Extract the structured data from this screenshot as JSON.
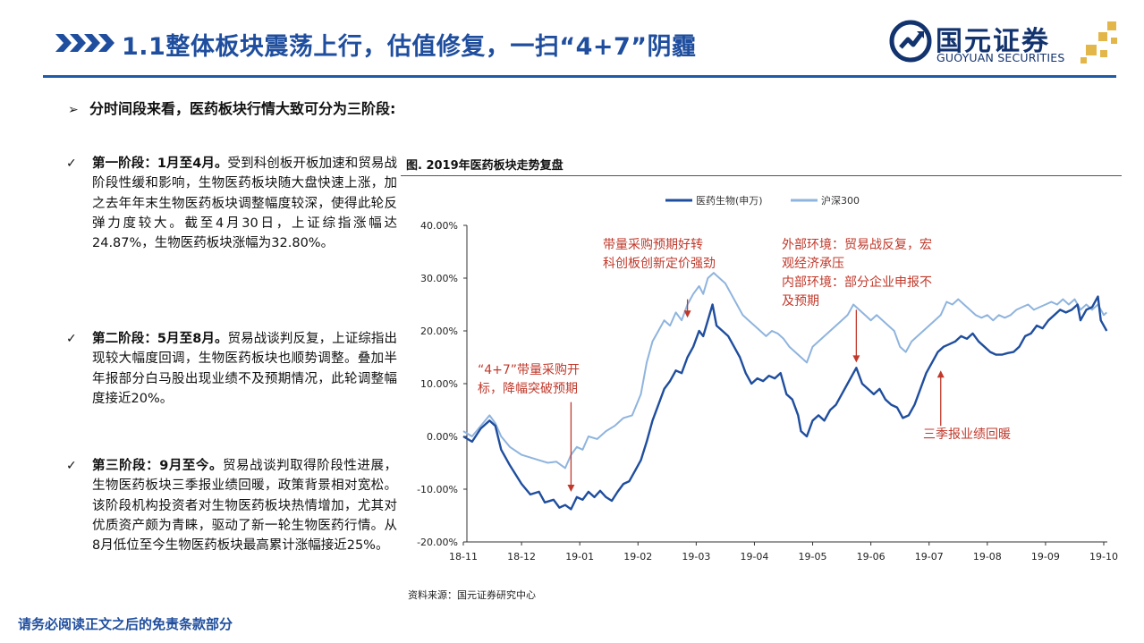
{
  "header": {
    "title": "1.1整体板块震荡上行，估值修复，一扫“4+7”阴霾"
  },
  "logo": {
    "name_cn": "国元证券",
    "name_en": "GUOYUAN SECURITIES"
  },
  "intro": "分时间段来看，医药板块行情大致可分为三阶段:",
  "stages": [
    {
      "lead": "第一阶段：1月至4月。",
      "text": "受到科创板开板加速和贸易战阶段性缓和影响，生物医药板块随大盘快速上涨，加之去年年末生物医药板块调整幅度较深，使得此轮反弹力度较大。截至4月30日，上证综指涨幅达24.87%，生物医药板块涨幅为32.80%。"
    },
    {
      "lead": "第二阶段：5月至8月。",
      "text": "贸易战谈判反复，上证综指出现较大幅度回调，生物医药板块也顺势调整。叠加半年报部分白马股出现业绩不及预期情况，此轮调整幅度接近20%。"
    },
    {
      "lead": "第三阶段：9月至今。",
      "text": "贸易战谈判取得阶段性进展，生物医药板块三季报业绩回暖，政策背景相对宽松。该阶段机构投资者对生物医药板块热情增加，尤其对优质资产颇为青睐，驱动了新一轮生物医药行情。从8月低位至今生物医药板块最高累计涨幅接近25%。"
    }
  ],
  "figure": {
    "title": "图. 2019年医药板块走势复盘",
    "source": "资料来源：国元证券研究中心"
  },
  "chart_data": {
    "type": "line",
    "title": "",
    "x_ticks": [
      "18-11",
      "18-12",
      "19-01",
      "19-02",
      "19-03",
      "19-04",
      "19-05",
      "19-06",
      "19-07",
      "19-08",
      "19-09",
      "19-10"
    ],
    "y_ticks": [
      "-20.00%",
      "-10.00%",
      "0.00%",
      "10.00%",
      "20.00%",
      "30.00%",
      "40.00%"
    ],
    "ylim": [
      -20,
      40
    ],
    "legend_position": "top-center",
    "grid": false,
    "series": [
      {
        "name": "医药生物(申万)",
        "color": "#1f4e9e",
        "points": [
          [
            0,
            0
          ],
          [
            0.15,
            -1
          ],
          [
            0.3,
            1.5
          ],
          [
            0.45,
            3
          ],
          [
            0.55,
            2
          ],
          [
            0.65,
            -2.5
          ],
          [
            0.8,
            -5.5
          ],
          [
            1.0,
            -9
          ],
          [
            1.15,
            -11
          ],
          [
            1.3,
            -10.5
          ],
          [
            1.4,
            -12.5
          ],
          [
            1.55,
            -12
          ],
          [
            1.65,
            -13.5
          ],
          [
            1.75,
            -13
          ],
          [
            1.85,
            -13.8
          ],
          [
            1.95,
            -11.5
          ],
          [
            2.05,
            -12
          ],
          [
            2.15,
            -10.5
          ],
          [
            2.25,
            -11.5
          ],
          [
            2.35,
            -10.3
          ],
          [
            2.45,
            -11.5
          ],
          [
            2.55,
            -12.2
          ],
          [
            2.65,
            -10.5
          ],
          [
            2.75,
            -9
          ],
          [
            2.85,
            -8.5
          ],
          [
            2.95,
            -6.5
          ],
          [
            3.05,
            -4.5
          ],
          [
            3.15,
            -1
          ],
          [
            3.25,
            3
          ],
          [
            3.35,
            6
          ],
          [
            3.45,
            9
          ],
          [
            3.55,
            10.5
          ],
          [
            3.65,
            12.5
          ],
          [
            3.75,
            12
          ],
          [
            3.85,
            15
          ],
          [
            3.95,
            17
          ],
          [
            4.05,
            20
          ],
          [
            4.12,
            19
          ],
          [
            4.2,
            22
          ],
          [
            4.28,
            25
          ],
          [
            4.35,
            21
          ],
          [
            4.45,
            20
          ],
          [
            4.55,
            19
          ],
          [
            4.65,
            17
          ],
          [
            4.75,
            15
          ],
          [
            4.85,
            12
          ],
          [
            4.95,
            10
          ],
          [
            5.05,
            11
          ],
          [
            5.15,
            10.5
          ],
          [
            5.25,
            11.5
          ],
          [
            5.35,
            11
          ],
          [
            5.45,
            12
          ],
          [
            5.55,
            8
          ],
          [
            5.65,
            7
          ],
          [
            5.75,
            4
          ],
          [
            5.8,
            1
          ],
          [
            5.9,
            0
          ],
          [
            6.0,
            3
          ],
          [
            6.1,
            4
          ],
          [
            6.2,
            3
          ],
          [
            6.3,
            5
          ],
          [
            6.4,
            6
          ],
          [
            6.5,
            8
          ],
          [
            6.6,
            10
          ],
          [
            6.7,
            12
          ],
          [
            6.75,
            13
          ],
          [
            6.85,
            10
          ],
          [
            6.95,
            9
          ],
          [
            7.05,
            8
          ],
          [
            7.15,
            9
          ],
          [
            7.25,
            7
          ],
          [
            7.35,
            6
          ],
          [
            7.45,
            5.5
          ],
          [
            7.55,
            3.5
          ],
          [
            7.65,
            4
          ],
          [
            7.75,
            6
          ],
          [
            7.85,
            9
          ],
          [
            7.95,
            12
          ],
          [
            8.05,
            14
          ],
          [
            8.15,
            16
          ],
          [
            8.25,
            17
          ],
          [
            8.35,
            17.5
          ],
          [
            8.45,
            18
          ],
          [
            8.55,
            19
          ],
          [
            8.65,
            18.5
          ],
          [
            8.75,
            19.5
          ],
          [
            8.85,
            18
          ],
          [
            8.95,
            17
          ],
          [
            9.05,
            16
          ],
          [
            9.15,
            15.5
          ],
          [
            9.25,
            15.5
          ],
          [
            9.35,
            15.8
          ],
          [
            9.45,
            16
          ],
          [
            9.55,
            17
          ],
          [
            9.65,
            19
          ],
          [
            9.75,
            19.5
          ],
          [
            9.85,
            21
          ],
          [
            9.95,
            20.5
          ],
          [
            10.05,
            22
          ],
          [
            10.15,
            23
          ],
          [
            10.25,
            24
          ],
          [
            10.35,
            23.5
          ],
          [
            10.45,
            24
          ],
          [
            10.55,
            25
          ],
          [
            10.6,
            22
          ],
          [
            10.7,
            24
          ],
          [
            10.8,
            24.5
          ],
          [
            10.9,
            26.5
          ],
          [
            10.95,
            22
          ],
          [
            11.05,
            20
          ]
        ]
      },
      {
        "name": "沪深300",
        "color": "#8fb4de",
        "points": [
          [
            0,
            1
          ],
          [
            0.15,
            0
          ],
          [
            0.3,
            2
          ],
          [
            0.45,
            4
          ],
          [
            0.55,
            2.5
          ],
          [
            0.65,
            0
          ],
          [
            0.8,
            -2
          ],
          [
            1.0,
            -3.5
          ],
          [
            1.15,
            -4
          ],
          [
            1.3,
            -4.5
          ],
          [
            1.45,
            -5
          ],
          [
            1.6,
            -4.8
          ],
          [
            1.75,
            -6
          ],
          [
            1.85,
            -3.5
          ],
          [
            1.95,
            -2
          ],
          [
            2.05,
            -2.5
          ],
          [
            2.15,
            0
          ],
          [
            2.3,
            -0.5
          ],
          [
            2.45,
            1
          ],
          [
            2.6,
            2
          ],
          [
            2.75,
            3.5
          ],
          [
            2.9,
            4
          ],
          [
            3.05,
            8
          ],
          [
            3.15,
            14
          ],
          [
            3.25,
            18
          ],
          [
            3.35,
            20
          ],
          [
            3.45,
            22
          ],
          [
            3.55,
            21
          ],
          [
            3.65,
            23.5
          ],
          [
            3.75,
            22
          ],
          [
            3.85,
            25
          ],
          [
            3.95,
            27
          ],
          [
            4.05,
            28.5
          ],
          [
            4.12,
            27
          ],
          [
            4.2,
            30
          ],
          [
            4.3,
            31
          ],
          [
            4.4,
            30
          ],
          [
            4.5,
            29
          ],
          [
            4.6,
            27
          ],
          [
            4.7,
            25
          ],
          [
            4.8,
            23
          ],
          [
            4.9,
            22
          ],
          [
            5.0,
            21
          ],
          [
            5.1,
            20
          ],
          [
            5.2,
            19
          ],
          [
            5.3,
            20
          ],
          [
            5.4,
            19.5
          ],
          [
            5.5,
            18.5
          ],
          [
            5.6,
            17
          ],
          [
            5.7,
            16
          ],
          [
            5.8,
            15
          ],
          [
            5.9,
            14
          ],
          [
            6.0,
            17
          ],
          [
            6.1,
            18
          ],
          [
            6.2,
            19
          ],
          [
            6.3,
            20
          ],
          [
            6.4,
            21
          ],
          [
            6.5,
            22
          ],
          [
            6.6,
            23
          ],
          [
            6.7,
            25
          ],
          [
            6.8,
            24
          ],
          [
            6.9,
            23
          ],
          [
            7.0,
            22
          ],
          [
            7.1,
            23
          ],
          [
            7.2,
            22
          ],
          [
            7.3,
            21
          ],
          [
            7.4,
            20
          ],
          [
            7.5,
            17
          ],
          [
            7.6,
            16
          ],
          [
            7.7,
            18
          ],
          [
            7.8,
            19
          ],
          [
            7.9,
            20
          ],
          [
            8.0,
            21
          ],
          [
            8.1,
            22
          ],
          [
            8.2,
            23
          ],
          [
            8.3,
            25.5
          ],
          [
            8.4,
            25
          ],
          [
            8.5,
            26
          ],
          [
            8.6,
            25
          ],
          [
            8.7,
            24
          ],
          [
            8.8,
            23
          ],
          [
            8.9,
            22.5
          ],
          [
            9.0,
            23
          ],
          [
            9.1,
            22
          ],
          [
            9.2,
            23
          ],
          [
            9.3,
            22.5
          ],
          [
            9.4,
            23
          ],
          [
            9.5,
            24
          ],
          [
            9.6,
            24.5
          ],
          [
            9.7,
            25
          ],
          [
            9.8,
            24
          ],
          [
            9.9,
            24.5
          ],
          [
            10.0,
            25
          ],
          [
            10.1,
            25.5
          ],
          [
            10.2,
            25
          ],
          [
            10.3,
            26
          ],
          [
            10.4,
            25
          ],
          [
            10.5,
            26
          ],
          [
            10.6,
            24
          ],
          [
            10.7,
            25
          ],
          [
            10.8,
            24
          ],
          [
            10.9,
            25
          ],
          [
            11.0,
            23
          ],
          [
            11.05,
            23.5
          ]
        ]
      }
    ],
    "annotations": [
      {
        "lines": [
          "“4+7”带量采购开",
          "标，降幅突破预期"
        ],
        "arrow_x": 1.85,
        "arrow_from_y": 6.5,
        "arrow_to_y": -10.5
      },
      {
        "lines": [
          "带量采购预期好转",
          "科创板创新定价强劲"
        ],
        "arrow_x": 3.85,
        "arrow_from_y": 26,
        "arrow_to_y": 22.5
      },
      {
        "lines": [
          "外部环境：贸易战反复，宏",
          "观经济承压",
          "内部环境：部分企业申报不",
          "及预期"
        ],
        "arrow_x": 6.75,
        "arrow_from_y": 24,
        "arrow_to_y": 14
      },
      {
        "lines": [
          "三季报业绩回暖"
        ],
        "arrow_x": 8.2,
        "arrow_from_y": 2,
        "arrow_to_y": 12.5
      }
    ]
  },
  "footer": {
    "disclaimer": "请务必阅读正文之后的免责条款部分"
  },
  "colors": {
    "brand_blue": "#1f4e9e",
    "logo_navy": "#12336e",
    "logo_gold": "#e3b64a",
    "annotation_red": "#c0392b"
  }
}
